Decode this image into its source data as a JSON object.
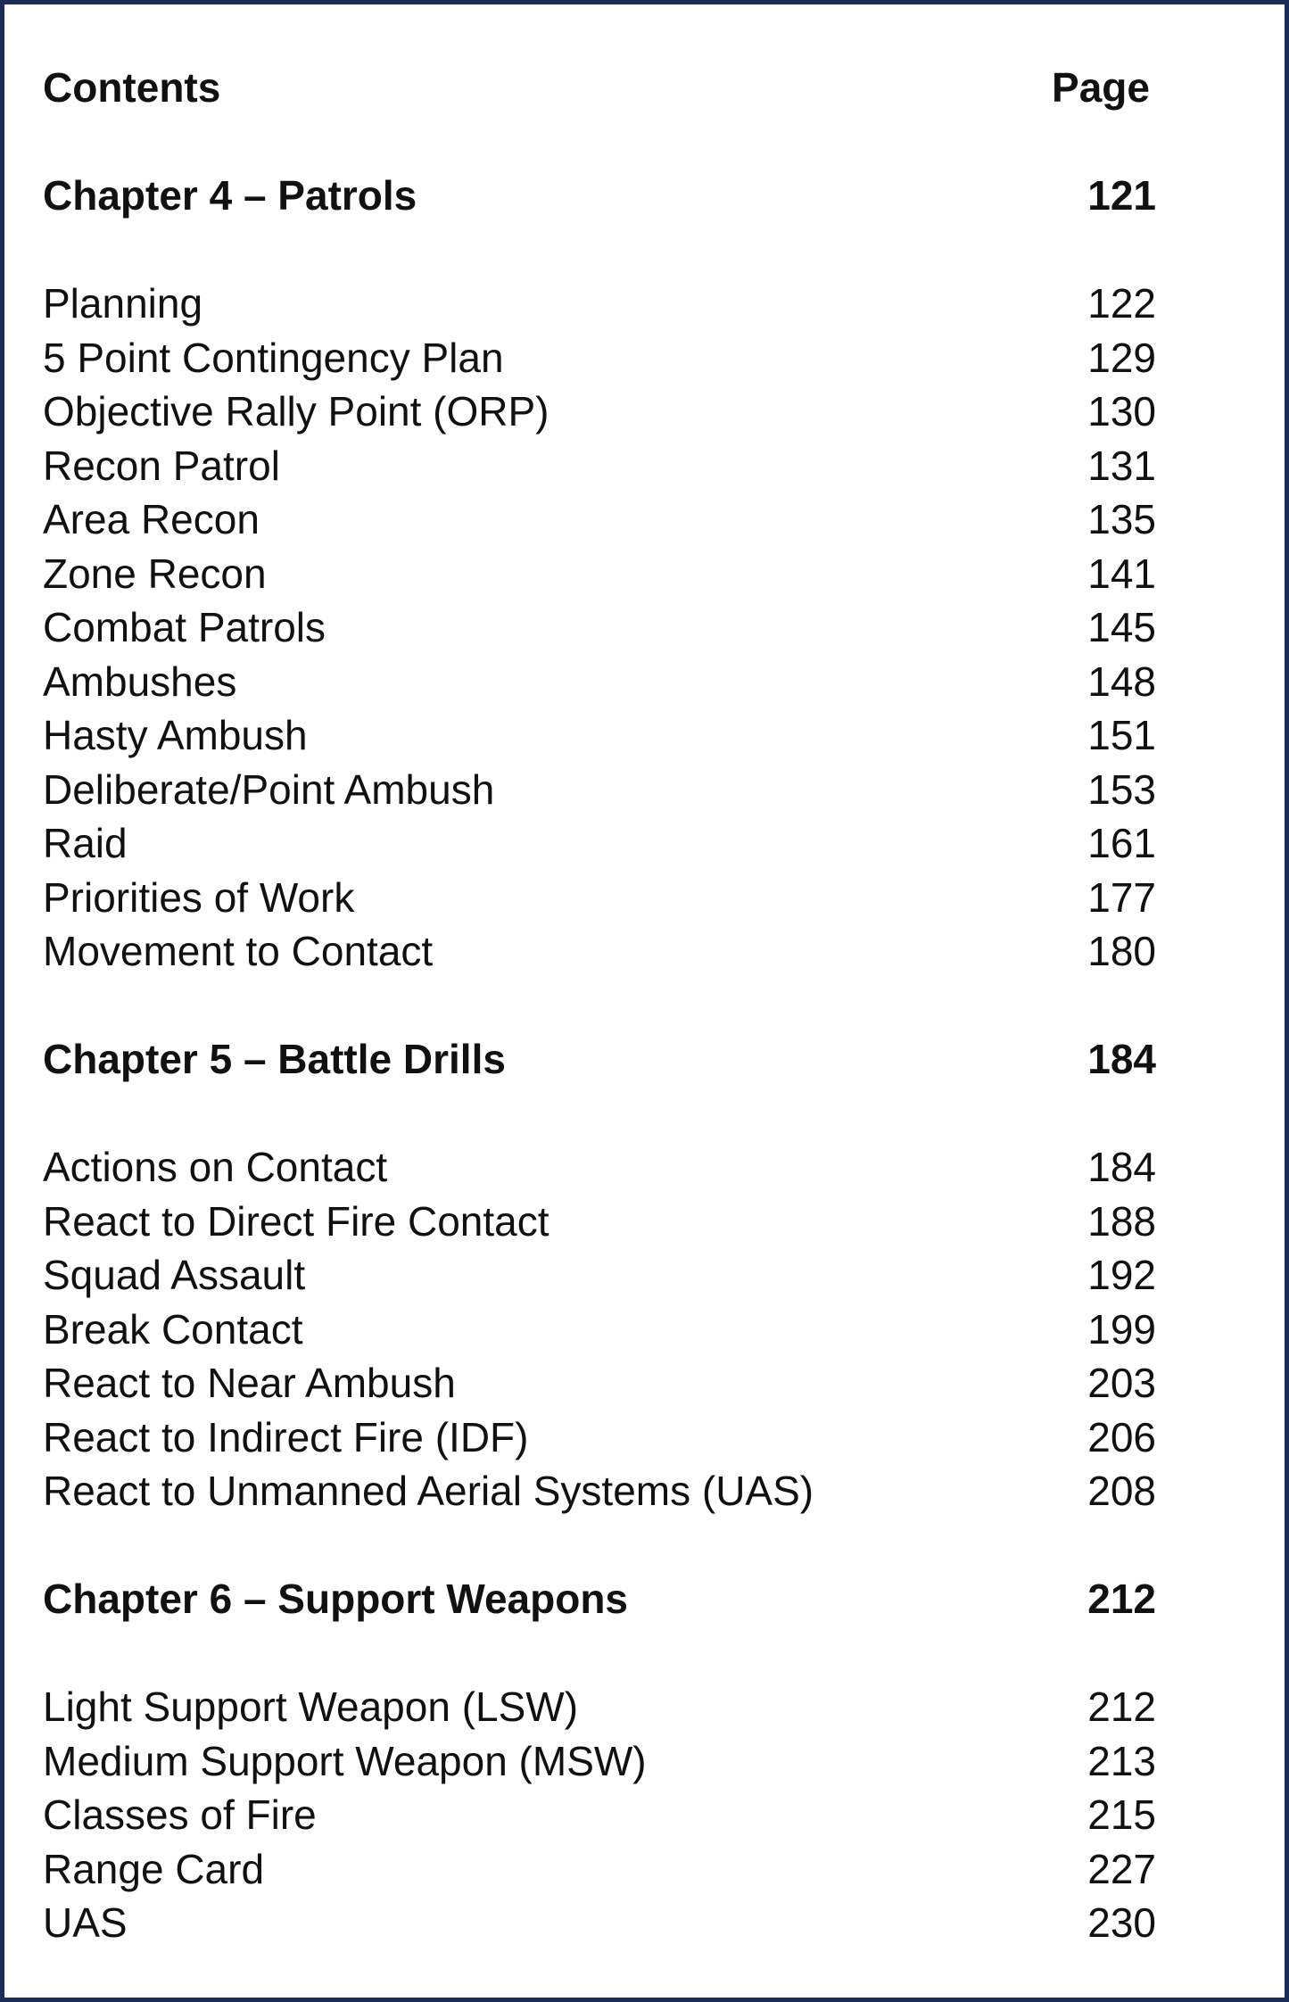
{
  "header": {
    "title": "Contents",
    "page_label": "Page"
  },
  "chapters": [
    {
      "title": "Chapter 4 – Patrols",
      "page": "121",
      "items": [
        {
          "label": "Planning",
          "page": "122"
        },
        {
          "label": "5 Point Contingency Plan",
          "page": "129"
        },
        {
          "label": "Objective Rally Point (ORP)",
          "page": "130"
        },
        {
          "label": "Recon Patrol",
          "page": "131"
        },
        {
          "label": "Area Recon",
          "page": "135"
        },
        {
          "label": "Zone Recon",
          "page": "141"
        },
        {
          "label": "Combat Patrols",
          "page": "145"
        },
        {
          "label": "Ambushes",
          "page": "148"
        },
        {
          "label": "Hasty Ambush",
          "page": "151"
        },
        {
          "label": "Deliberate/Point Ambush",
          "page": "153"
        },
        {
          "label": "Raid",
          "page": "161"
        },
        {
          "label": "Priorities of Work",
          "page": "177"
        },
        {
          "label": "Movement to Contact",
          "page": "180"
        }
      ]
    },
    {
      "title": "Chapter 5 – Battle Drills",
      "page": "184",
      "items": [
        {
          "label": "Actions on Contact",
          "page": "184"
        },
        {
          "label": "React to Direct Fire Contact",
          "page": "188"
        },
        {
          "label": "Squad Assault",
          "page": "192"
        },
        {
          "label": "Break Contact",
          "page": "199"
        },
        {
          "label": "React to Near Ambush",
          "page": "203"
        },
        {
          "label": "React to Indirect Fire (IDF)",
          "page": "206"
        },
        {
          "label": "React to Unmanned Aerial Systems (UAS)",
          "page": "208"
        }
      ]
    },
    {
      "title": "Chapter 6 – Support Weapons",
      "page": "212",
      "items": [
        {
          "label": "Light Support Weapon (LSW)",
          "page": "212"
        },
        {
          "label": "Medium Support Weapon (MSW)",
          "page": "213"
        },
        {
          "label": "Classes of Fire",
          "page": "215"
        },
        {
          "label": "Range Card",
          "page": "227"
        },
        {
          "label": "UAS",
          "page": "230"
        }
      ]
    }
  ],
  "colors": {
    "border": "#1b2c55",
    "text": "#111111"
  }
}
